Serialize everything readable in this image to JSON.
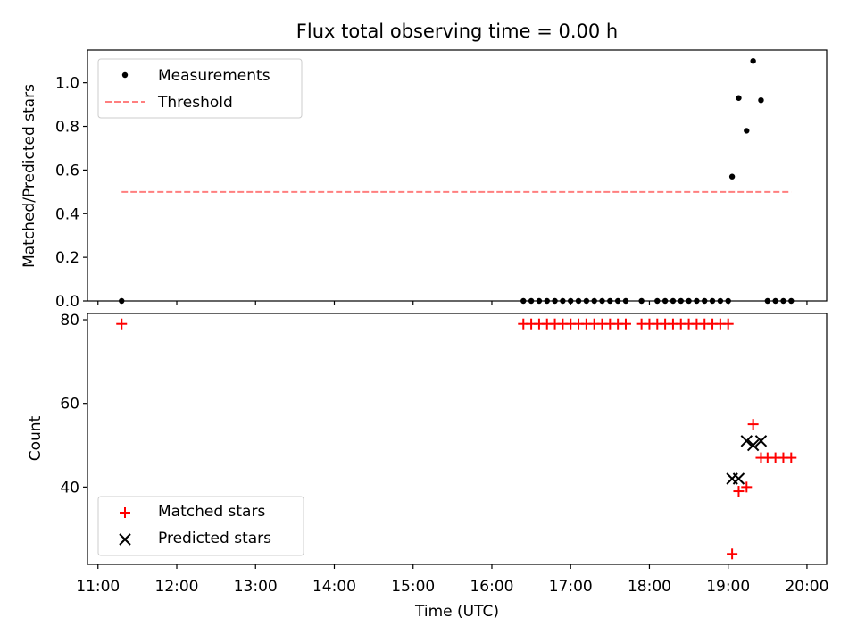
{
  "chart_data": [
    {
      "type": "scatter",
      "title": "Flux total observing time = 0.00 h",
      "xlabel": "",
      "ylabel": "Matched/Predicted stars",
      "xlim": [
        "10:52",
        "20:15"
      ],
      "ylim": [
        0,
        1.15
      ],
      "yticks": [
        "0.0",
        "0.2",
        "0.4",
        "0.6",
        "0.8",
        "1.0"
      ],
      "grid": false,
      "legend_position": "top-left",
      "series": [
        {
          "name": "Measurements",
          "marker": "dot",
          "color": "#000000",
          "points": [
            [
              "11:18",
              0
            ],
            [
              "16:24",
              0
            ],
            [
              "16:30",
              0
            ],
            [
              "16:36",
              0
            ],
            [
              "16:42",
              0
            ],
            [
              "16:48",
              0
            ],
            [
              "16:54",
              0
            ],
            [
              "17:00",
              0
            ],
            [
              "17:06",
              0
            ],
            [
              "17:12",
              0
            ],
            [
              "17:18",
              0
            ],
            [
              "17:24",
              0
            ],
            [
              "17:30",
              0
            ],
            [
              "17:36",
              0
            ],
            [
              "17:42",
              0
            ],
            [
              "17:54",
              0
            ],
            [
              "18:06",
              0
            ],
            [
              "18:12",
              0
            ],
            [
              "18:18",
              0
            ],
            [
              "18:24",
              0
            ],
            [
              "18:30",
              0
            ],
            [
              "18:36",
              0
            ],
            [
              "18:42",
              0
            ],
            [
              "18:48",
              0
            ],
            [
              "18:54",
              0
            ],
            [
              "19:00",
              0
            ],
            [
              "19:30",
              0
            ],
            [
              "19:36",
              0
            ],
            [
              "19:42",
              0
            ],
            [
              "19:48",
              0
            ],
            [
              "19:03",
              0.57
            ],
            [
              "19:08",
              0.93
            ],
            [
              "19:14",
              0.78
            ],
            [
              "19:19",
              1.1
            ],
            [
              "19:25",
              0.92
            ]
          ]
        },
        {
          "name": "Threshold",
          "style": "dashed",
          "color": "#ff7f7f",
          "points": [
            [
              "11:18",
              0.5
            ],
            [
              "19:48",
              0.5
            ]
          ]
        }
      ]
    },
    {
      "type": "scatter",
      "title": "",
      "xlabel": "Time (UTC)",
      "ylabel": "Count",
      "xlim": [
        "10:52",
        "20:15"
      ],
      "ylim": [
        21.5,
        81.5
      ],
      "yticks": [
        "40",
        "60",
        "80"
      ],
      "xticks": [
        "11:00",
        "12:00",
        "13:00",
        "14:00",
        "15:00",
        "16:00",
        "17:00",
        "18:00",
        "19:00",
        "20:00"
      ],
      "grid": false,
      "legend_position": "bottom-left",
      "series": [
        {
          "name": "Matched stars",
          "marker": "plus",
          "color": "#ff0000",
          "points": [
            [
              "11:18",
              79
            ],
            [
              "16:24",
              79
            ],
            [
              "16:30",
              79
            ],
            [
              "16:36",
              79
            ],
            [
              "16:42",
              79
            ],
            [
              "16:48",
              79
            ],
            [
              "16:54",
              79
            ],
            [
              "17:00",
              79
            ],
            [
              "17:06",
              79
            ],
            [
              "17:12",
              79
            ],
            [
              "17:18",
              79
            ],
            [
              "17:24",
              79
            ],
            [
              "17:30",
              79
            ],
            [
              "17:36",
              79
            ],
            [
              "17:42",
              79
            ],
            [
              "17:54",
              79
            ],
            [
              "18:00",
              79
            ],
            [
              "18:06",
              79
            ],
            [
              "18:12",
              79
            ],
            [
              "18:18",
              79
            ],
            [
              "18:24",
              79
            ],
            [
              "18:30",
              79
            ],
            [
              "18:36",
              79
            ],
            [
              "18:42",
              79
            ],
            [
              "18:48",
              79
            ],
            [
              "18:54",
              79
            ],
            [
              "19:00",
              79
            ],
            [
              "19:03",
              24
            ],
            [
              "19:08",
              39
            ],
            [
              "19:14",
              40
            ],
            [
              "19:19",
              55
            ],
            [
              "19:25",
              47
            ],
            [
              "19:30",
              47
            ],
            [
              "19:36",
              47
            ],
            [
              "19:42",
              47
            ],
            [
              "19:48",
              47
            ]
          ]
        },
        {
          "name": "Predicted stars",
          "marker": "x",
          "color": "#000000",
          "points": [
            [
              "19:03",
              42
            ],
            [
              "19:08",
              42
            ],
            [
              "19:14",
              51
            ],
            [
              "19:19",
              50
            ],
            [
              "19:25",
              51
            ]
          ]
        }
      ]
    }
  ]
}
